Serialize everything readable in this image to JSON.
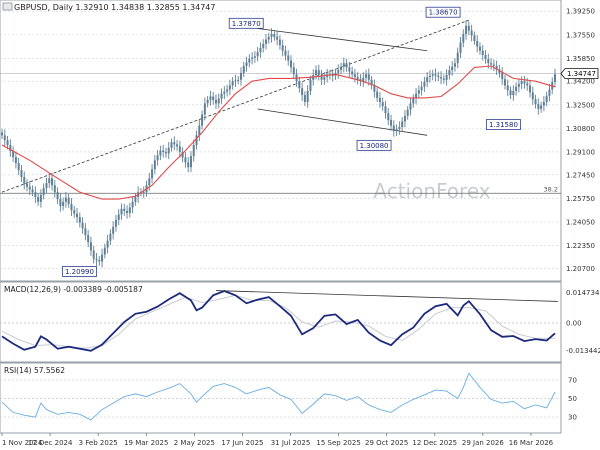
{
  "header": {
    "symbol": "GBPUSD",
    "timeframe": "Daily",
    "ohlc": "1.32910 1.34838 1.32855 1.34747"
  },
  "watermark": "ActionForex",
  "colors": {
    "candle": "#5f7f95",
    "ma_line": "#e04a4a",
    "macd_line": "#1c2a7e",
    "signal_line": "#c9cbd3",
    "rsi_line": "#6aaee0",
    "grid": "#d0d3d8",
    "label_border": "#2f3e8e"
  },
  "chart_data": [
    {
      "type": "candlestick",
      "panel": "price",
      "title": "GBPUSD, Daily 1.32910 1.34838 1.32855 1.34747",
      "ylim": [
        1.1994,
        1.3984
      ],
      "y_ticks": [
        "1.39250",
        "1.37550",
        "1.35850",
        "1.34200",
        "1.32500",
        "1.30800",
        "1.29100",
        "1.27450",
        "1.25750",
        "1.24050",
        "1.22350",
        "1.20700"
      ],
      "x_ticks": [
        "1 Nov 2024",
        "17 Dec 2024",
        "3 Feb 2025",
        "19 Mar 2025",
        "2 May 2025",
        "17 Jun 2025",
        "31 Jul 2025",
        "15 Sep 2025",
        "29 Oct 2025",
        "12 Dec 2025",
        "29 Jan 2026",
        "16 Mar 2026"
      ],
      "last_price": "1.34747",
      "close_path": [
        [
          0,
          1.303
        ],
        [
          2,
          1.296
        ],
        [
          5,
          1.283
        ],
        [
          8,
          1.268
        ],
        [
          11,
          1.262
        ],
        [
          13,
          1.255
        ],
        [
          15,
          1.265
        ],
        [
          17,
          1.272
        ],
        [
          19,
          1.262
        ],
        [
          21,
          1.252
        ],
        [
          23,
          1.258
        ],
        [
          25,
          1.249
        ],
        [
          27,
          1.244
        ],
        [
          29,
          1.236
        ],
        [
          31,
          1.226
        ],
        [
          33,
          1.214
        ],
        [
          35,
          1.212
        ],
        [
          37,
          1.222
        ],
        [
          39,
          1.232
        ],
        [
          41,
          1.242
        ],
        [
          43,
          1.25
        ],
        [
          45,
          1.247
        ],
        [
          47,
          1.255
        ],
        [
          49,
          1.262
        ],
        [
          51,
          1.262
        ],
        [
          53,
          1.272
        ],
        [
          55,
          1.285
        ],
        [
          57,
          1.292
        ],
        [
          59,
          1.29
        ],
        [
          61,
          1.298
        ],
        [
          63,
          1.295
        ],
        [
          65,
          1.287
        ],
        [
          67,
          1.28
        ],
        [
          69,
          1.296
        ],
        [
          71,
          1.31
        ],
        [
          73,
          1.326
        ],
        [
          75,
          1.331
        ],
        [
          77,
          1.326
        ],
        [
          79,
          1.333
        ],
        [
          81,
          1.336
        ],
        [
          83,
          1.342
        ],
        [
          85,
          1.343
        ],
        [
          87,
          1.353
        ],
        [
          89,
          1.358
        ],
        [
          91,
          1.36
        ],
        [
          93,
          1.366
        ],
        [
          95,
          1.372
        ],
        [
          97,
          1.376
        ],
        [
          99,
          1.372
        ],
        [
          101,
          1.364
        ],
        [
          103,
          1.357
        ],
        [
          105,
          1.347
        ],
        [
          107,
          1.337
        ],
        [
          109,
          1.327
        ],
        [
          111,
          1.343
        ],
        [
          113,
          1.35
        ],
        [
          115,
          1.343
        ],
        [
          117,
          1.347
        ],
        [
          119,
          1.346
        ],
        [
          121,
          1.35
        ],
        [
          123,
          1.355
        ],
        [
          125,
          1.349
        ],
        [
          127,
          1.345
        ],
        [
          129,
          1.342
        ],
        [
          131,
          1.347
        ],
        [
          133,
          1.339
        ],
        [
          135,
          1.33
        ],
        [
          137,
          1.324
        ],
        [
          139,
          1.314
        ],
        [
          141,
          1.306
        ],
        [
          143,
          1.309
        ],
        [
          145,
          1.317
        ],
        [
          147,
          1.326
        ],
        [
          149,
          1.333
        ],
        [
          151,
          1.338
        ],
        [
          153,
          1.345
        ],
        [
          155,
          1.347
        ],
        [
          157,
          1.345
        ],
        [
          159,
          1.343
        ],
        [
          161,
          1.35
        ],
        [
          163,
          1.355
        ],
        [
          165,
          1.37
        ],
        [
          167,
          1.382
        ],
        [
          169,
          1.375
        ],
        [
          171,
          1.367
        ],
        [
          173,
          1.361
        ],
        [
          175,
          1.355
        ],
        [
          177,
          1.353
        ],
        [
          179,
          1.348
        ],
        [
          181,
          1.339
        ],
        [
          183,
          1.332
        ],
        [
          185,
          1.338
        ],
        [
          187,
          1.342
        ],
        [
          189,
          1.339
        ],
        [
          191,
          1.329
        ],
        [
          193,
          1.322
        ],
        [
          195,
          1.327
        ],
        [
          197,
          1.336
        ],
        [
          199,
          1.347
        ]
      ],
      "annotations": [
        {
          "label": "1.20990",
          "x_index": 34,
          "y": 1.2099
        },
        {
          "label": "1.37870",
          "x_index": 94,
          "y": 1.3787
        },
        {
          "label": "1.30080",
          "x_index": 140,
          "y": 1.3008
        },
        {
          "label": "1.38670",
          "x_index": 167,
          "y": 1.3867
        },
        {
          "label": "1.31580",
          "x_index": 188,
          "y": 1.3158
        }
      ],
      "fib_level": {
        "label": "38.2",
        "y": 1.2612
      },
      "ma_path": [
        [
          0,
          1.296
        ],
        [
          10,
          1.285
        ],
        [
          20,
          1.272
        ],
        [
          28,
          1.262
        ],
        [
          36,
          1.257
        ],
        [
          42,
          1.257
        ],
        [
          48,
          1.259
        ],
        [
          54,
          1.267
        ],
        [
          60,
          1.28
        ],
        [
          66,
          1.292
        ],
        [
          72,
          1.305
        ],
        [
          78,
          1.32
        ],
        [
          84,
          1.333
        ],
        [
          90,
          1.342
        ],
        [
          96,
          1.344
        ],
        [
          104,
          1.344
        ],
        [
          112,
          1.345
        ],
        [
          120,
          1.347
        ],
        [
          128,
          1.343
        ],
        [
          134,
          1.339
        ],
        [
          140,
          1.333
        ],
        [
          146,
          1.33
        ],
        [
          152,
          1.33
        ],
        [
          158,
          1.331
        ],
        [
          164,
          1.34
        ],
        [
          170,
          1.352
        ],
        [
          176,
          1.353
        ],
        [
          184,
          1.344
        ],
        [
          192,
          1.342
        ],
        [
          199,
          1.338
        ]
      ],
      "trendlines": [
        {
          "from": [
            0,
            1.262
          ],
          "to": [
            168,
            1.386
          ],
          "style": "dashed"
        },
        {
          "from": [
            92,
            1.38
          ],
          "to": [
            153,
            1.364
          ],
          "style": "solid"
        },
        {
          "from": [
            92,
            1.322
          ],
          "to": [
            153,
            1.303
          ],
          "style": "solid"
        }
      ]
    },
    {
      "type": "line",
      "panel": "macd",
      "title": "MACD(12,26,9) -0.003389 -0.005187",
      "ylim": [
        -0.0175,
        0.0185
      ],
      "y_ticks": [
        "0.014734",
        "0.00",
        "-0.013442"
      ],
      "series": [
        {
          "name": "MACD",
          "points": [
            [
              0,
              -0.0065
            ],
            [
              4,
              -0.01
            ],
            [
              8,
              -0.013
            ],
            [
              12,
              -0.0115
            ],
            [
              14,
              -0.0065
            ],
            [
              16,
              -0.008
            ],
            [
              20,
              -0.0125
            ],
            [
              24,
              -0.0115
            ],
            [
              28,
              -0.0125
            ],
            [
              32,
              -0.0135
            ],
            [
              36,
              -0.0105
            ],
            [
              40,
              -0.005
            ],
            [
              44,
              0.0005
            ],
            [
              48,
              0.0045
            ],
            [
              52,
              0.0055
            ],
            [
              56,
              0.008
            ],
            [
              60,
              0.0115
            ],
            [
              64,
              0.0145
            ],
            [
              68,
              0.011
            ],
            [
              70,
              0.0062
            ],
            [
              72,
              0.0075
            ],
            [
              76,
              0.0135
            ],
            [
              80,
              0.0156
            ],
            [
              84,
              0.0135
            ],
            [
              88,
              0.0096
            ],
            [
              92,
              0.0114
            ],
            [
              96,
              0.0126
            ],
            [
              100,
              0.0082
            ],
            [
              104,
              0.0035
            ],
            [
              108,
              -0.0055
            ],
            [
              112,
              -0.0025
            ],
            [
              116,
              0.0035
            ],
            [
              120,
              0.0042
            ],
            [
              124,
              -0.0005
            ],
            [
              128,
              0.0015
            ],
            [
              132,
              -0.0047
            ],
            [
              136,
              -0.0085
            ],
            [
              140,
              -0.0108
            ],
            [
              144,
              -0.0055
            ],
            [
              148,
              -0.0022
            ],
            [
              152,
              0.0045
            ],
            [
              156,
              0.0082
            ],
            [
              160,
              0.0093
            ],
            [
              164,
              0.0037
            ],
            [
              166,
              0.0085
            ],
            [
              168,
              0.0106
            ],
            [
              172,
              0.0043
            ],
            [
              176,
              -0.0035
            ],
            [
              180,
              -0.0067
            ],
            [
              184,
              -0.0063
            ],
            [
              188,
              -0.0088
            ],
            [
              192,
              -0.0078
            ],
            [
              196,
              -0.0085
            ],
            [
              199,
              -0.005
            ]
          ]
        },
        {
          "name": "Signal",
          "points": [
            [
              0,
              -0.004
            ],
            [
              6,
              -0.008
            ],
            [
              12,
              -0.011
            ],
            [
              18,
              -0.0105
            ],
            [
              24,
              -0.0115
            ],
            [
              30,
              -0.0123
            ],
            [
              36,
              -0.011
            ],
            [
              42,
              -0.0055
            ],
            [
              48,
              0.002
            ],
            [
              54,
              0.0055
            ],
            [
              60,
              0.009
            ],
            [
              66,
              0.0125
            ],
            [
              72,
              0.01
            ],
            [
              78,
              0.0115
            ],
            [
              84,
              0.0135
            ],
            [
              90,
              0.011
            ],
            [
              96,
              0.011
            ],
            [
              102,
              0.0075
            ],
            [
              108,
              0.0005
            ],
            [
              114,
              -0.002
            ],
            [
              120,
              0.001
            ],
            [
              126,
              0.0005
            ],
            [
              132,
              -0.0015
            ],
            [
              138,
              -0.0065
            ],
            [
              144,
              -0.0085
            ],
            [
              150,
              -0.003
            ],
            [
              156,
              0.0045
            ],
            [
              162,
              0.0075
            ],
            [
              168,
              0.0075
            ],
            [
              174,
              0.006
            ],
            [
              180,
              -0.0015
            ],
            [
              186,
              -0.0055
            ],
            [
              192,
              -0.0075
            ],
            [
              199,
              -0.0075
            ]
          ]
        }
      ],
      "divergence_line": {
        "from": [
          77,
          0.0158
        ],
        "to": [
          200,
          0.0105
        ]
      }
    },
    {
      "type": "line",
      "panel": "rsi",
      "title": "RSI(14) 57.5562",
      "ylim": [
        15,
        85
      ],
      "y_ticks": [
        "70",
        "50",
        "30"
      ],
      "series": [
        {
          "name": "RSI",
          "points": [
            [
              0,
              46
            ],
            [
              4,
              35
            ],
            [
              8,
              32
            ],
            [
              12,
              30
            ],
            [
              14,
              45
            ],
            [
              16,
              38
            ],
            [
              20,
              33
            ],
            [
              24,
              35
            ],
            [
              28,
              33
            ],
            [
              32,
              27
            ],
            [
              36,
              38
            ],
            [
              40,
              45
            ],
            [
              44,
              52
            ],
            [
              48,
              55
            ],
            [
              52,
              52
            ],
            [
              56,
              57
            ],
            [
              60,
              61
            ],
            [
              64,
              66
            ],
            [
              68,
              55
            ],
            [
              70,
              46
            ],
            [
              72,
              52
            ],
            [
              76,
              63
            ],
            [
              80,
              66
            ],
            [
              84,
              62
            ],
            [
              88,
              55
            ],
            [
              92,
              59
            ],
            [
              96,
              62
            ],
            [
              100,
              54
            ],
            [
              104,
              49
            ],
            [
              108,
              34
            ],
            [
              112,
              44
            ],
            [
              116,
              55
            ],
            [
              120,
              53
            ],
            [
              124,
              48
            ],
            [
              128,
              52
            ],
            [
              132,
              43
            ],
            [
              136,
              38
            ],
            [
              140,
              35
            ],
            [
              144,
              43
            ],
            [
              148,
              49
            ],
            [
              152,
              54
            ],
            [
              156,
              59
            ],
            [
              160,
              58
            ],
            [
              164,
              50
            ],
            [
              166,
              62
            ],
            [
              168,
              77
            ],
            [
              172,
              62
            ],
            [
              176,
              49
            ],
            [
              180,
              45
            ],
            [
              184,
              47
            ],
            [
              188,
              39
            ],
            [
              192,
              43
            ],
            [
              196,
              40
            ],
            [
              199,
              57
            ]
          ]
        }
      ]
    }
  ]
}
